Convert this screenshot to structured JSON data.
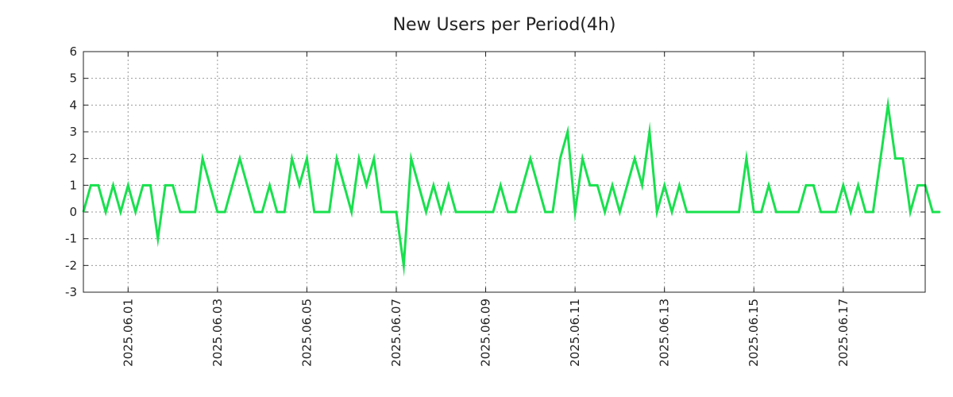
{
  "chart_data": {
    "type": "line",
    "title": "New Users per Period(4h)",
    "xlabel": "",
    "ylabel": "",
    "ylim": [
      -3,
      6
    ],
    "yticks": [
      -3,
      -2,
      -1,
      0,
      1,
      2,
      3,
      4,
      5,
      6
    ],
    "grid": true,
    "x_start": "2025.05.31 00:00",
    "x_step_hours": 4,
    "xticks": [
      {
        "label": "2025.06.01",
        "index": 6
      },
      {
        "label": "2025.06.03",
        "index": 18
      },
      {
        "label": "2025.06.05",
        "index": 30
      },
      {
        "label": "2025.06.07",
        "index": 42
      },
      {
        "label": "2025.06.09",
        "index": 54
      },
      {
        "label": "2025.06.11",
        "index": 66
      },
      {
        "label": "2025.06.13",
        "index": 78
      },
      {
        "label": "2025.06.15",
        "index": 90
      },
      {
        "label": "2025.06.17",
        "index": 102
      }
    ],
    "xlim_index": [
      0,
      113
    ],
    "series": [
      {
        "name": "New Users",
        "color": "#19e04e",
        "values": [
          0,
          1,
          1,
          0,
          1,
          0,
          1,
          0,
          1,
          1,
          -1,
          1,
          1,
          0,
          0,
          0,
          2,
          1,
          0,
          0,
          1,
          2,
          1,
          0,
          0,
          1,
          0,
          0,
          2,
          1,
          2,
          0,
          0,
          0,
          2,
          1,
          0,
          2,
          1,
          2,
          0,
          0,
          0,
          -2,
          2,
          1,
          0,
          1,
          0,
          1,
          0,
          0,
          0,
          0,
          0,
          0,
          1,
          0,
          0,
          1,
          2,
          1,
          0,
          0,
          2,
          3,
          0,
          2,
          1,
          1,
          0,
          1,
          0,
          1,
          2,
          1,
          3,
          0,
          1,
          0,
          1,
          0,
          0,
          0,
          0,
          0,
          0,
          0,
          0,
          2,
          0,
          0,
          1,
          0,
          0,
          0,
          0,
          1,
          1,
          0,
          0,
          0,
          1,
          0,
          1,
          0,
          0,
          2,
          4,
          2,
          2,
          0,
          1,
          1,
          0,
          0
        ]
      }
    ]
  }
}
